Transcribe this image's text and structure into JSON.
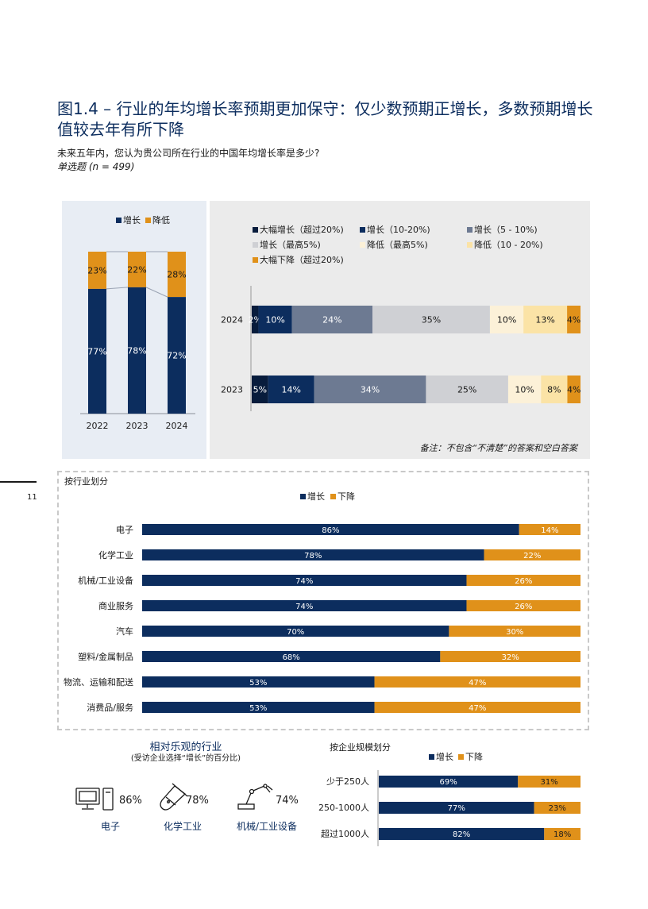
{
  "title": "图1.4 – 行业的年均增长率预期更加保守：仅少数预期正增长，多数预期增长值较去年有所下降",
  "question": "未来五年内，您认为贵公司所在行业的中国年均增长率是多少?",
  "question_sub": "单选题 (n = 499)",
  "note": "备注：不包含“不清楚”的答案和空白答案",
  "page_number": "11",
  "colors": {
    "navy": "#0c2d5e",
    "orange": "#e0911a",
    "dark_navy": "#081c3c",
    "slate": "#6d7a92",
    "light_gray": "#cfd0d4",
    "cream": "#fcf1d8",
    "light_yellow": "#fbe3a6"
  },
  "chart_data": [
    {
      "type": "bar",
      "stacked": true,
      "legend": [
        "增长",
        "降低"
      ],
      "categories": [
        "2022",
        "2023",
        "2024"
      ],
      "series": [
        {
          "name": "增长",
          "values": [
            77,
            78,
            72
          ],
          "labels": [
            "77%",
            "78%",
            "72%"
          ]
        },
        {
          "name": "降低",
          "values": [
            23,
            22,
            28
          ],
          "labels": [
            "23%",
            "22%",
            "28%"
          ]
        }
      ]
    },
    {
      "type": "bar",
      "orientation": "horizontal",
      "stacked": true,
      "legend_placement": "top",
      "categories": [
        "2024",
        "2023"
      ],
      "series": [
        {
          "name": "大幅增长（超过20%)",
          "values": [
            2,
            5
          ],
          "labels": [
            "2%",
            "5%"
          ]
        },
        {
          "name": "增长（10-20%)",
          "values": [
            10,
            14
          ],
          "labels": [
            "10%",
            "14%"
          ]
        },
        {
          "name": "增长（5 - 10%)",
          "values": [
            24,
            34
          ],
          "labels": [
            "24%",
            "34%"
          ]
        },
        {
          "name": "增长（最高5%)",
          "values": [
            35,
            25
          ],
          "labels": [
            "35%",
            "25%"
          ]
        },
        {
          "name": "降低（最高5%)",
          "values": [
            10,
            10
          ],
          "labels": [
            "10%",
            "10%"
          ]
        },
        {
          "name": "降低（10 - 20%)",
          "values": [
            13,
            8
          ],
          "labels": [
            "13%",
            "8%"
          ]
        },
        {
          "name": "大幅下降（超过20%)",
          "values": [
            4,
            4
          ],
          "labels": [
            "4%",
            "4%"
          ]
        }
      ]
    },
    {
      "type": "bar",
      "orientation": "horizontal",
      "stacked": true,
      "title": "按行业划分",
      "legend": [
        "增长",
        "下降"
      ],
      "categories": [
        "电子",
        "化学工业",
        "机械/工业设备",
        "商业服务",
        "汽车",
        "塑料/金属制品",
        "物流、运输和配送",
        "消费品/服务"
      ],
      "series": [
        {
          "name": "增长",
          "values": [
            86,
            78,
            74,
            74,
            70,
            68,
            53,
            53
          ],
          "labels": [
            "86%",
            "78%",
            "74%",
            "74%",
            "70%",
            "68%",
            "53%",
            "53%"
          ]
        },
        {
          "name": "下降",
          "values": [
            14,
            22,
            26,
            26,
            30,
            32,
            47,
            47
          ],
          "labels": [
            "14%",
            "22%",
            "26%",
            "26%",
            "30%",
            "32%",
            "47%",
            "47%"
          ]
        }
      ]
    },
    {
      "type": "bar",
      "orientation": "horizontal",
      "stacked": true,
      "title": "按企业规模划分",
      "legend": [
        "增长",
        "下降"
      ],
      "categories": [
        "少于250人",
        "250-1000人",
        "超过1000人"
      ],
      "series": [
        {
          "name": "增长",
          "values": [
            69,
            77,
            82
          ],
          "labels": [
            "69%",
            "77%",
            "82%"
          ]
        },
        {
          "name": "下降",
          "values": [
            31,
            23,
            18
          ],
          "labels": [
            "31%",
            "23%",
            "18%"
          ]
        }
      ]
    }
  ],
  "optimistic": {
    "title": "相对乐观的行业",
    "subtitle": "(受访企业选择“增长”的百分比)",
    "items": [
      {
        "icon": "computer-icon",
        "value": "86%",
        "label": "电子"
      },
      {
        "icon": "test-tube-icon",
        "value": "78%",
        "label": "化学工业"
      },
      {
        "icon": "robot-arm-icon",
        "value": "74%",
        "label": "机械/工业设备"
      }
    ]
  }
}
